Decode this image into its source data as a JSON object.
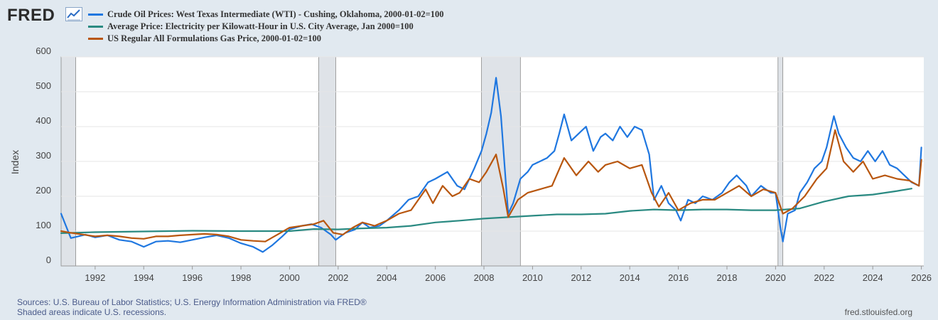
{
  "header": {
    "logo": "FRED",
    "logo_icon": "line-chart-icon"
  },
  "legend": [
    {
      "label": "Crude Oil Prices: West Texas Intermediate (WTI) - Cushing, Oklahoma, 2000-01-02=100",
      "color": "#1f77e0"
    },
    {
      "label": "Average Price: Electricity per Kilowatt-Hour in U.S. City Average, Jan 2000=100",
      "color": "#2a8a82"
    },
    {
      "label": "US Regular All Formulations Gas Price, 2000-01-02=100",
      "color": "#b8560e"
    }
  ],
  "footer": {
    "sources": "Sources: U.S. Bureau of Labor Statistics; U.S. Energy Information Administration via FRED®",
    "recessions": "Shaded areas indicate U.S. recessions.",
    "site": "fred.stlouisfed.org"
  },
  "chart_data": {
    "type": "line",
    "title": "",
    "xlabel": "",
    "ylabel": "Index",
    "xlim": [
      1990.6,
      2026.1
    ],
    "ylim": [
      0,
      600
    ],
    "yticks": [
      0,
      100,
      200,
      300,
      400,
      500,
      600
    ],
    "xticks": [
      1992,
      1994,
      1996,
      1998,
      2000,
      2002,
      2004,
      2006,
      2008,
      2010,
      2012,
      2014,
      2016,
      2018,
      2020,
      2022,
      2024,
      2026
    ],
    "recessions": [
      [
        1990.6,
        1991.2
      ],
      [
        2001.2,
        2001.9
      ],
      [
        2007.9,
        2009.5
      ],
      [
        2020.1,
        2020.3
      ]
    ],
    "series": [
      {
        "name": "Crude Oil Prices: West Texas Intermediate (WTI) - Cushing, Oklahoma, 2000-01-02=100",
        "color": "#1f77e0",
        "x": [
          1990.6,
          1990.8,
          1991.0,
          1991.3,
          1991.6,
          1992.0,
          1992.5,
          1993.0,
          1993.5,
          1994.0,
          1994.5,
          1995.0,
          1995.5,
          1996.0,
          1996.5,
          1997.0,
          1997.5,
          1998.0,
          1998.5,
          1998.9,
          1999.3,
          1999.7,
          2000.0,
          2000.5,
          2000.9,
          2001.3,
          2001.7,
          2001.9,
          2002.3,
          2002.7,
          2003.0,
          2003.3,
          2003.7,
          2004.0,
          2004.5,
          2004.9,
          2005.3,
          2005.7,
          2006.0,
          2006.5,
          2006.9,
          2007.2,
          2007.6,
          2007.9,
          2008.1,
          2008.3,
          2008.5,
          2008.7,
          2008.9,
          2009.0,
          2009.2,
          2009.5,
          2009.8,
          2010.0,
          2010.3,
          2010.6,
          2010.9,
          2011.1,
          2011.3,
          2011.6,
          2011.9,
          2012.2,
          2012.5,
          2012.8,
          2013.0,
          2013.3,
          2013.6,
          2013.9,
          2014.2,
          2014.5,
          2014.8,
          2015.0,
          2015.3,
          2015.6,
          2015.9,
          2016.1,
          2016.4,
          2016.7,
          2017.0,
          2017.4,
          2017.8,
          2018.1,
          2018.4,
          2018.8,
          2019.0,
          2019.4,
          2019.8,
          2020.0,
          2020.2,
          2020.3,
          2020.5,
          2020.8,
          2021.0,
          2021.3,
          2021.6,
          2021.9,
          2022.1,
          2022.4,
          2022.6,
          2022.9,
          2023.2,
          2023.5,
          2023.8,
          2024.1,
          2024.4,
          2024.7,
          2025.0,
          2025.3,
          2025.6,
          2025.9,
          2026.0
        ],
        "values": [
          150,
          115,
          80,
          85,
          90,
          82,
          88,
          75,
          70,
          55,
          70,
          72,
          68,
          75,
          82,
          88,
          80,
          65,
          55,
          40,
          60,
          85,
          105,
          115,
          120,
          110,
          90,
          75,
          95,
          105,
          125,
          110,
          115,
          130,
          160,
          190,
          200,
          240,
          250,
          270,
          230,
          220,
          280,
          330,
          380,
          440,
          540,
          430,
          240,
          150,
          180,
          250,
          270,
          290,
          300,
          310,
          330,
          380,
          435,
          360,
          380,
          400,
          330,
          370,
          380,
          360,
          400,
          370,
          400,
          390,
          320,
          190,
          230,
          180,
          160,
          130,
          190,
          180,
          200,
          190,
          210,
          240,
          260,
          230,
          200,
          230,
          210,
          210,
          110,
          70,
          150,
          160,
          210,
          240,
          280,
          300,
          340,
          430,
          380,
          340,
          310,
          300,
          330,
          300,
          330,
          290,
          280,
          260,
          240,
          230,
          340
        ]
      },
      {
        "name": "Average Price: Electricity per Kilowatt-Hour in U.S. City Average, Jan 2000=100",
        "color": "#2a8a82",
        "x": [
          1990.6,
          1992.0,
          1994.0,
          1996.0,
          1998.0,
          2000.0,
          2001.0,
          2002.0,
          2003.0,
          2004.0,
          2005.0,
          2006.0,
          2007.0,
          2008.0,
          2009.0,
          2010.0,
          2011.0,
          2012.0,
          2013.0,
          2014.0,
          2015.0,
          2016.0,
          2017.0,
          2018.0,
          2019.0,
          2020.0,
          2021.0,
          2022.0,
          2023.0,
          2024.0,
          2025.0,
          2025.6
        ],
        "values": [
          94,
          97,
          99,
          101,
          100,
          100,
          106,
          105,
          108,
          110,
          115,
          125,
          130,
          136,
          140,
          144,
          148,
          148,
          150,
          158,
          162,
          160,
          162,
          162,
          160,
          160,
          165,
          185,
          200,
          205,
          215,
          222
        ]
      },
      {
        "name": "US Regular All Formulations Gas Price, 2000-01-02=100",
        "color": "#b8560e",
        "x": [
          1990.6,
          1991.0,
          1991.5,
          1992.0,
          1992.5,
          1993.0,
          1993.5,
          1994.0,
          1994.5,
          1995.0,
          1995.5,
          1996.0,
          1996.5,
          1997.0,
          1997.5,
          1998.0,
          1998.5,
          1999.0,
          1999.5,
          2000.0,
          2000.5,
          2001.0,
          2001.4,
          2001.8,
          2002.2,
          2002.6,
          2003.0,
          2003.5,
          2004.0,
          2004.5,
          2005.0,
          2005.6,
          2005.9,
          2006.3,
          2006.7,
          2007.0,
          2007.4,
          2007.8,
          2008.1,
          2008.5,
          2008.8,
          2009.0,
          2009.4,
          2009.8,
          2010.3,
          2010.8,
          2011.3,
          2011.8,
          2012.3,
          2012.7,
          2013.0,
          2013.5,
          2014.0,
          2014.5,
          2014.9,
          2015.2,
          2015.6,
          2016.0,
          2016.5,
          2017.0,
          2017.5,
          2018.0,
          2018.5,
          2019.0,
          2019.5,
          2020.0,
          2020.3,
          2020.7,
          2021.2,
          2021.7,
          2022.1,
          2022.45,
          2022.8,
          2023.2,
          2023.6,
          2024.0,
          2024.5,
          2025.0,
          2025.5,
          2025.9,
          2026.0
        ],
        "values": [
          100,
          95,
          90,
          85,
          88,
          85,
          80,
          78,
          85,
          85,
          88,
          90,
          92,
          90,
          85,
          75,
          72,
          70,
          90,
          110,
          115,
          120,
          130,
          95,
          90,
          110,
          125,
          115,
          130,
          150,
          160,
          220,
          180,
          230,
          200,
          210,
          250,
          240,
          270,
          320,
          220,
          140,
          190,
          210,
          220,
          230,
          310,
          260,
          300,
          270,
          290,
          300,
          280,
          290,
          210,
          170,
          210,
          160,
          180,
          190,
          190,
          210,
          230,
          200,
          220,
          210,
          150,
          165,
          200,
          250,
          280,
          390,
          300,
          270,
          300,
          250,
          260,
          250,
          245,
          230,
          305
        ]
      }
    ]
  }
}
